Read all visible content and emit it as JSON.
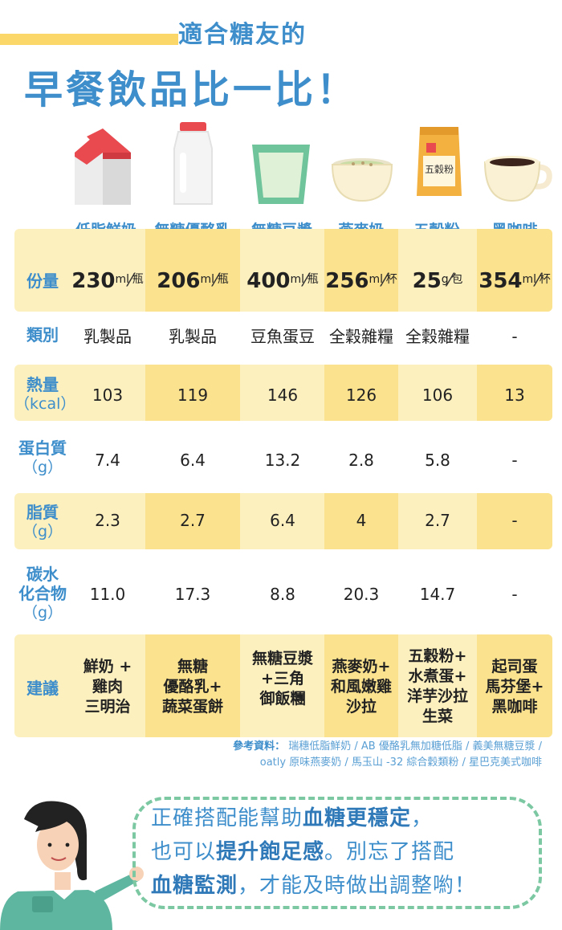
{
  "header": {
    "subtitle": "適合糖友的",
    "title": "早餐飲品比一比！"
  },
  "columns": [
    {
      "name": "低脂鮮奶",
      "icon": "milk-carton-icon"
    },
    {
      "name": "無糖優酪乳",
      "icon": "yogurt-bottle-icon"
    },
    {
      "name": "無糖豆漿",
      "icon": "soy-milk-cup-icon"
    },
    {
      "name": "燕麥奶",
      "icon": "oat-milk-bowl-icon"
    },
    {
      "name": "五穀粉",
      "icon": "grain-powder-bag-icon",
      "bag_text": "五穀粉"
    },
    {
      "name": "黑咖啡",
      "icon": "coffee-cup-icon"
    }
  ],
  "rows": {
    "portion": {
      "label": "份量",
      "values": [
        {
          "num": "230",
          "unit_top": "ml",
          "unit_bottom": "瓶"
        },
        {
          "num": "206",
          "unit_top": "ml",
          "unit_bottom": "瓶"
        },
        {
          "num": "400",
          "unit_top": "ml",
          "unit_bottom": "瓶"
        },
        {
          "num": "256",
          "unit_top": "ml",
          "unit_bottom": "杯"
        },
        {
          "num": "25",
          "unit_top": "g",
          "unit_bottom": "包"
        },
        {
          "num": "354",
          "unit_top": "ml",
          "unit_bottom": "杯"
        }
      ]
    },
    "category": {
      "label": "類別",
      "values": [
        "乳製品",
        "乳製品",
        "豆魚蛋豆",
        "全穀雜糧",
        "全穀雜糧",
        "-"
      ]
    },
    "calories": {
      "label": "熱量",
      "label_sub": "（kcal）",
      "values": [
        "103",
        "119",
        "146",
        "126",
        "106",
        "13"
      ]
    },
    "protein": {
      "label": "蛋白質",
      "label_sub": "（g）",
      "values": [
        "7.4",
        "6.4",
        "13.2",
        "2.8",
        "5.8",
        "-"
      ]
    },
    "fat": {
      "label": "脂質",
      "label_sub": "（g）",
      "values": [
        "2.3",
        "2.7",
        "6.4",
        "4",
        "2.7",
        "-"
      ]
    },
    "carbs": {
      "label": "碳水",
      "label_2": "化合物",
      "label_sub": "（g）",
      "values": [
        "11.0",
        "17.3",
        "8.8",
        "20.3",
        "14.7",
        "-"
      ]
    },
    "suggestion": {
      "label": "建議",
      "values": [
        [
          "鮮奶 +",
          "雞肉",
          "三明治"
        ],
        [
          "無糖",
          "優酪乳+",
          "蔬菜蛋餅"
        ],
        [
          "無糖豆漿",
          "+三角",
          "御飯糰"
        ],
        [
          "燕麥奶+",
          "和風嫩雞",
          "沙拉"
        ],
        [
          "五穀粉+",
          "水煮蛋+",
          "洋芋沙拉",
          "生菜"
        ],
        [
          "起司蛋",
          "馬芬堡+",
          "黑咖啡"
        ]
      ]
    }
  },
  "reference": {
    "title": "參考資料：",
    "line1": "瑞穗低脂鮮奶 / AB 優酪乳無加糖低脂 / 義美無糖豆漿 /",
    "line2": "oatly 原味燕麥奶 / 馬玉山 -32 綜合穀類粉 / 星巴克美式咖啡"
  },
  "message": {
    "l1_a": "正確搭配能幫助",
    "l1_b": "血糖更穩定",
    "l1_c": "，",
    "l2_a": "也可以",
    "l2_b": "提升飽足感",
    "l2_c": "。別忘了搭配",
    "l3_a": "血糖監測",
    "l3_b": "，才能及時做出調整喲！"
  },
  "colors": {
    "blue": "#3d8ecb",
    "band_light": "#fdf0bf",
    "band_dark": "#fbe28e",
    "bubble_border": "#7cc8a3"
  }
}
